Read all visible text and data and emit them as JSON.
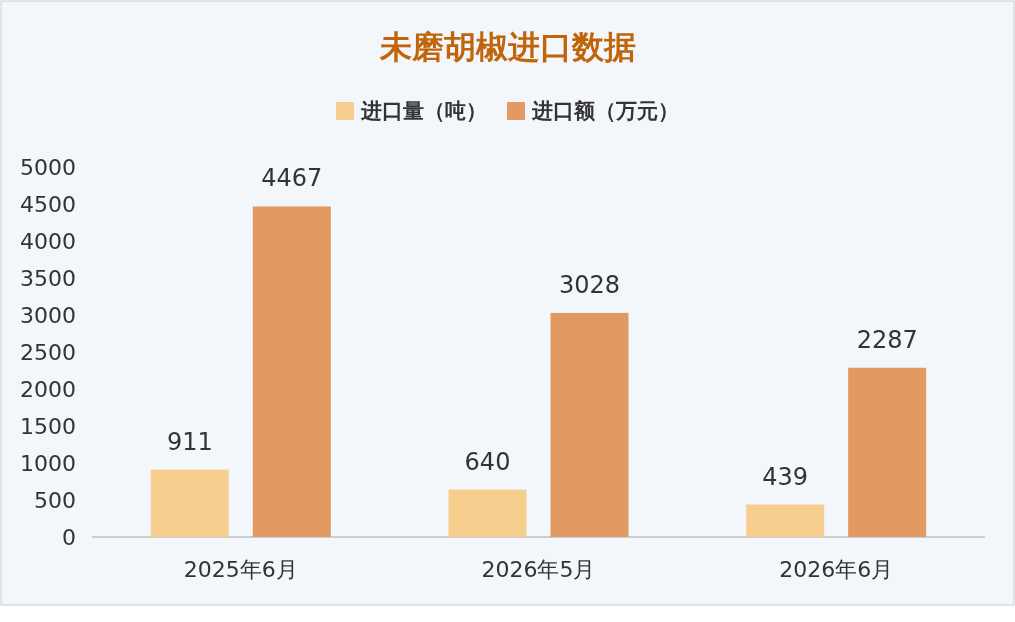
{
  "chart_data": {
    "type": "bar",
    "title": "未磨胡椒进口数据",
    "categories": [
      "2025年6月",
      "2026年5月",
      "2026年6月"
    ],
    "series": [
      {
        "name": "进口量（吨）",
        "color": "#f6cf8f",
        "values": [
          911,
          640,
          439
        ]
      },
      {
        "name": "进口额（万元）",
        "color": "#e29a63",
        "values": [
          4467,
          3028,
          2287
        ]
      }
    ],
    "ylim": [
      0,
      5000
    ],
    "yticks": [
      0,
      500,
      1000,
      1500,
      2000,
      2500,
      3000,
      3500,
      4000,
      4500,
      5000
    ],
    "data_labels": true,
    "legend": "top"
  }
}
